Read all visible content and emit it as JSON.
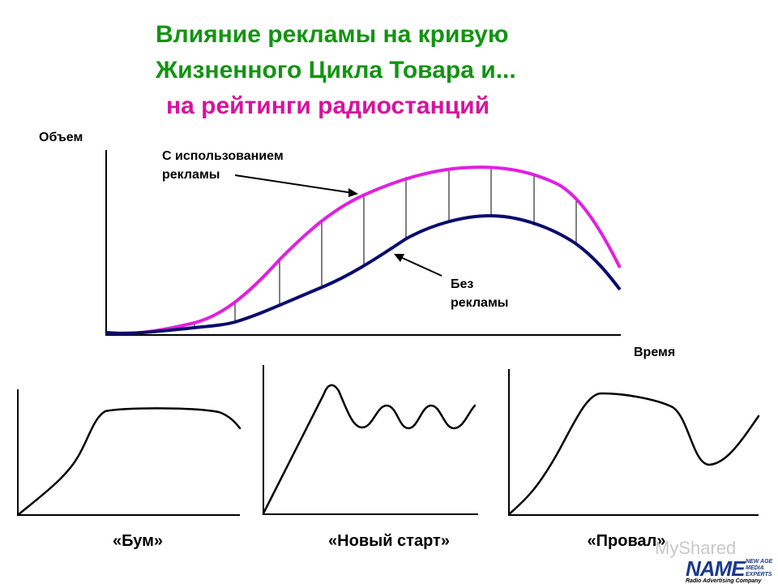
{
  "header": {
    "title_lines": [
      "Влияние рекламы на кривую",
      "Жизненного Цикла Товара и...",
      "на рейтинги радиостанций"
    ]
  },
  "main_diagram": {
    "y_label": "Объем",
    "x_label": "Время",
    "with_ads_label": [
      "С использованием",
      "рекламы"
    ],
    "without_ads_label": [
      "Без",
      "рекламы"
    ]
  },
  "scenarios": [
    {
      "label": "«Бум»"
    },
    {
      "label": "«Новый старт»"
    },
    {
      "label": "«Провал»"
    }
  ],
  "logo": {
    "brand": "NAME",
    "tagline": [
      "NEW AGE",
      "MEDIA",
      "EXPERTS"
    ],
    "company": "Radio Advertising Company"
  },
  "watermark": "MyShared"
}
